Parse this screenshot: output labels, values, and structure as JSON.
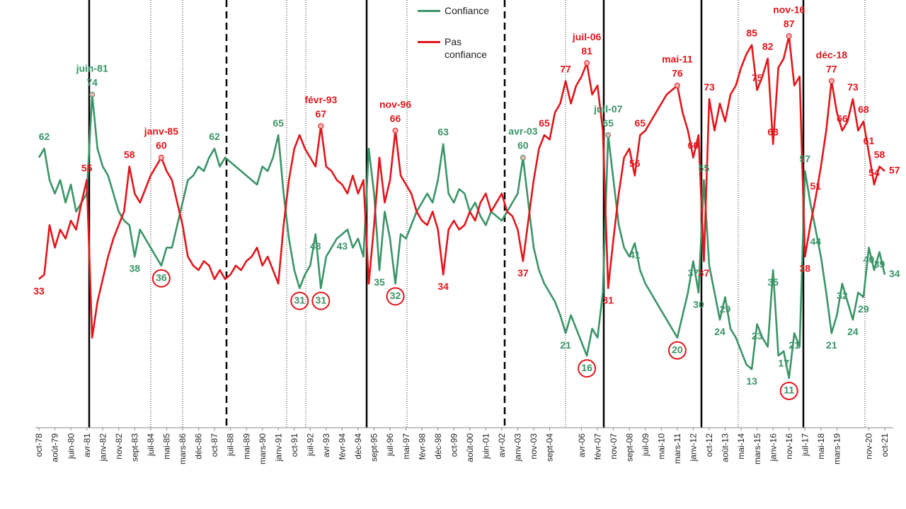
{
  "chart_data": {
    "type": "line",
    "ylim": [
      0,
      95
    ],
    "legend": "top",
    "categories": [
      "oct-78",
      null,
      null,
      "août-79",
      null,
      null,
      "juin-80",
      null,
      null,
      "avr-81",
      null,
      null,
      "janv-82",
      null,
      null,
      "nov-82",
      null,
      null,
      "sept-83",
      null,
      null,
      "juil-84",
      null,
      null,
      "mai-85",
      null,
      null,
      "mars-86",
      null,
      null,
      "déc-86",
      null,
      null,
      "oct-87",
      null,
      null,
      "juil-88",
      null,
      null,
      "mai-89",
      null,
      null,
      "mars-90",
      null,
      null,
      "janv-91",
      null,
      null,
      "oct-91",
      null,
      null,
      "juil-92",
      null,
      null,
      "avr-93",
      null,
      null,
      "févr-94",
      null,
      null,
      "déc-94",
      null,
      null,
      "sept-95",
      null,
      null,
      "juil-96",
      null,
      null,
      "mai-97",
      null,
      null,
      "févr-98",
      null,
      null,
      "déc-98",
      null,
      null,
      "oct-99",
      null,
      null,
      "août-00",
      null,
      null,
      "juin-01",
      null,
      null,
      "avr-02",
      null,
      null,
      "janv-03",
      null,
      null,
      "nov-03",
      null,
      null,
      "sept-04",
      null,
      null,
      null,
      null,
      null,
      "avr-06",
      null,
      null,
      "févr-07",
      null,
      null,
      "nov-07",
      null,
      null,
      "sept-08",
      null,
      null,
      "juil-09",
      null,
      null,
      "mai-10",
      null,
      null,
      "mars-11",
      null,
      null,
      "janv-12",
      null,
      null,
      "oct-12",
      null,
      null,
      "août-13",
      null,
      null,
      "mai-14",
      null,
      null,
      "mars-15",
      null,
      null,
      "janv-16",
      null,
      null,
      "nov-16",
      null,
      null,
      "juil-17",
      null,
      null,
      "mai-18",
      null,
      null,
      "mars-19",
      null,
      null,
      null,
      null,
      null,
      "nov-20",
      null,
      null,
      "oct-21"
    ],
    "series": [
      {
        "name": "Confiance",
        "color": "#3a9467",
        "values": [
          60,
          62,
          55,
          52,
          55,
          50,
          54,
          48,
          50,
          52,
          74,
          62,
          58,
          56,
          52,
          48,
          46,
          45,
          38,
          44,
          42,
          40,
          38,
          36,
          40,
          40,
          45,
          50,
          55,
          56,
          58,
          57,
          60,
          62,
          58,
          60,
          59,
          58,
          57,
          56,
          55,
          54,
          58,
          57,
          60,
          65,
          52,
          42,
          35,
          31,
          34,
          36,
          43,
          31,
          38,
          40,
          42,
          43,
          44,
          40,
          42,
          38,
          62,
          52,
          35,
          48,
          42,
          32,
          43,
          42,
          45,
          48,
          50,
          52,
          50,
          55,
          63,
          52,
          50,
          53,
          52,
          48,
          50,
          47,
          45,
          48,
          47,
          46,
          48,
          50,
          52,
          60,
          50,
          40,
          35,
          32,
          30,
          28,
          25,
          21,
          25,
          22,
          19,
          16,
          22,
          20,
          30,
          65,
          55,
          45,
          40,
          38,
          41,
          35,
          32,
          30,
          28,
          26,
          24,
          22,
          20,
          25,
          30,
          37,
          30,
          55,
          36,
          30,
          24,
          29,
          22,
          20,
          17,
          14,
          13,
          23,
          20,
          18,
          35,
          16,
          17,
          11,
          21,
          18,
          57,
          50,
          44,
          38,
          30,
          21,
          25,
          32,
          28,
          24,
          30,
          29,
          40,
          35,
          39,
          34
        ],
        "value_labels": [
          null,
          "62",
          null,
          null,
          null,
          null,
          null,
          null,
          null,
          null,
          "74",
          null,
          null,
          null,
          null,
          null,
          null,
          null,
          "38",
          null,
          null,
          null,
          null,
          {
            "text": "36",
            "circled": true
          },
          null,
          null,
          null,
          null,
          null,
          null,
          null,
          null,
          null,
          "62",
          null,
          null,
          null,
          null,
          null,
          null,
          null,
          null,
          null,
          null,
          null,
          "65",
          null,
          null,
          null,
          {
            "text": "31",
            "circled": true
          },
          null,
          null,
          "43",
          {
            "text": "31",
            "circled": true
          },
          null,
          null,
          null,
          "43",
          null,
          null,
          null,
          null,
          null,
          null,
          "35",
          null,
          null,
          {
            "text": "32",
            "circled": true
          },
          null,
          null,
          null,
          null,
          null,
          null,
          null,
          null,
          "63",
          null,
          null,
          null,
          null,
          null,
          null,
          null,
          null,
          null,
          null,
          null,
          null,
          null,
          null,
          "60",
          null,
          null,
          null,
          null,
          null,
          null,
          null,
          "21",
          null,
          null,
          null,
          {
            "text": "16",
            "circled": true
          },
          null,
          null,
          null,
          "65",
          null,
          null,
          null,
          null,
          "41",
          null,
          null,
          null,
          null,
          null,
          null,
          null,
          {
            "text": "20",
            "circled": true
          },
          null,
          null,
          "37",
          "30",
          "55",
          null,
          null,
          "24",
          "29",
          null,
          null,
          null,
          null,
          "13",
          "23",
          null,
          null,
          "35",
          null,
          "17",
          {
            "text": "11",
            "circled": true
          },
          "21",
          null,
          "57",
          null,
          "44",
          null,
          null,
          "21",
          null,
          "32",
          null,
          "24",
          null,
          "29",
          "40",
          null,
          "39",
          "34"
        ],
        "date_labels": [
          null,
          null,
          null,
          null,
          null,
          null,
          null,
          null,
          null,
          null,
          "juin-81",
          null,
          null,
          null,
          null,
          null,
          null,
          null,
          null,
          null,
          null,
          null,
          null,
          null,
          null,
          null,
          null,
          null,
          null,
          null,
          null,
          null,
          null,
          null,
          null,
          null,
          null,
          null,
          null,
          null,
          null,
          null,
          null,
          null,
          null,
          null,
          null,
          null,
          null,
          null,
          null,
          null,
          null,
          null,
          null,
          null,
          null,
          null,
          null,
          null,
          null,
          null,
          null,
          null,
          null,
          null,
          null,
          null,
          null,
          null,
          null,
          null,
          null,
          null,
          null,
          null,
          null,
          null,
          null,
          null,
          null,
          null,
          null,
          null,
          null,
          null,
          null,
          null,
          null,
          null,
          null,
          "avr-03",
          null,
          null,
          null,
          null,
          null,
          null,
          null,
          null,
          null,
          null,
          null,
          null,
          null,
          null,
          null,
          "juil-07",
          null,
          null,
          null,
          null,
          null,
          null,
          null,
          null,
          null,
          null,
          null,
          null,
          null,
          null,
          null,
          null,
          null,
          null,
          null,
          null,
          null,
          null,
          null,
          null,
          null,
          null,
          null,
          null,
          null,
          null,
          null,
          null,
          null,
          null,
          null,
          null,
          null,
          null,
          null,
          null,
          null,
          null,
          null,
          null,
          null,
          null,
          null,
          null,
          null,
          null,
          null,
          null
        ]
      },
      {
        "name": "Pas confiance",
        "color": "#e0161b",
        "values": [
          33,
          34,
          45,
          40,
          44,
          42,
          46,
          44,
          50,
          55,
          20,
          28,
          33,
          38,
          42,
          45,
          48,
          58,
          52,
          50,
          53,
          56,
          58,
          60,
          57,
          55,
          50,
          45,
          38,
          36,
          35,
          37,
          36,
          33,
          35,
          33,
          34,
          36,
          35,
          37,
          38,
          40,
          36,
          38,
          35,
          32,
          45,
          55,
          62,
          65,
          62,
          60,
          58,
          67,
          58,
          57,
          55,
          54,
          52,
          56,
          52,
          55,
          32,
          45,
          60,
          50,
          55,
          66,
          56,
          54,
          52,
          48,
          46,
          45,
          48,
          44,
          34,
          44,
          46,
          44,
          45,
          48,
          46,
          50,
          52,
          48,
          50,
          52,
          48,
          47,
          44,
          37,
          46,
          55,
          62,
          65,
          64,
          70,
          72,
          77,
          72,
          76,
          78,
          81,
          74,
          76,
          66,
          31,
          42,
          52,
          60,
          62,
          56,
          65,
          66,
          68,
          70,
          72,
          74,
          75,
          76,
          70,
          66,
          60,
          65,
          37,
          73,
          66,
          72,
          68,
          74,
          76,
          80,
          83,
          85,
          75,
          78,
          82,
          63,
          80,
          82,
          87,
          76,
          78,
          38,
          45,
          51,
          58,
          66,
          77,
          70,
          66,
          68,
          73,
          66,
          68,
          61,
          54,
          58,
          57
        ],
        "value_labels": [
          "33",
          null,
          null,
          null,
          null,
          null,
          null,
          null,
          null,
          "55",
          null,
          null,
          null,
          null,
          null,
          null,
          null,
          "58",
          null,
          null,
          null,
          null,
          null,
          "60",
          null,
          null,
          null,
          null,
          null,
          null,
          null,
          null,
          null,
          null,
          null,
          null,
          null,
          null,
          null,
          null,
          null,
          null,
          null,
          null,
          null,
          null,
          null,
          null,
          null,
          null,
          null,
          null,
          null,
          "67",
          null,
          null,
          null,
          null,
          null,
          null,
          null,
          null,
          null,
          null,
          null,
          null,
          null,
          "66",
          null,
          null,
          null,
          null,
          null,
          null,
          null,
          null,
          "34",
          null,
          null,
          null,
          null,
          null,
          null,
          null,
          null,
          null,
          null,
          null,
          null,
          null,
          null,
          "37",
          null,
          null,
          null,
          "65",
          null,
          null,
          null,
          "77",
          null,
          null,
          null,
          "81",
          null,
          null,
          null,
          "31",
          null,
          null,
          null,
          null,
          "56",
          "65",
          null,
          null,
          null,
          null,
          null,
          null,
          "76",
          null,
          null,
          "60",
          null,
          "37",
          "73",
          null,
          null,
          null,
          null,
          null,
          null,
          null,
          "85",
          "75",
          null,
          "82",
          "63",
          null,
          null,
          "87",
          null,
          null,
          "38",
          null,
          "51",
          null,
          null,
          "77",
          null,
          "66",
          null,
          "73",
          null,
          "68",
          "61",
          "54",
          "58",
          "57"
        ],
        "date_labels": [
          null,
          null,
          null,
          null,
          null,
          null,
          null,
          null,
          null,
          null,
          null,
          null,
          null,
          null,
          null,
          null,
          null,
          null,
          null,
          null,
          null,
          null,
          null,
          "janv-85",
          null,
          null,
          null,
          null,
          null,
          null,
          null,
          null,
          null,
          null,
          null,
          null,
          null,
          null,
          null,
          null,
          null,
          null,
          null,
          null,
          null,
          null,
          null,
          null,
          null,
          null,
          null,
          null,
          null,
          "févr-93",
          null,
          null,
          null,
          null,
          null,
          null,
          null,
          null,
          null,
          null,
          null,
          null,
          null,
          "nov-96",
          null,
          null,
          null,
          null,
          null,
          null,
          null,
          null,
          null,
          null,
          null,
          null,
          null,
          null,
          null,
          null,
          null,
          null,
          null,
          null,
          null,
          null,
          null,
          null,
          null,
          null,
          null,
          null,
          null,
          null,
          null,
          null,
          null,
          null,
          null,
          "juil-06",
          null,
          null,
          null,
          null,
          null,
          null,
          null,
          null,
          null,
          null,
          null,
          null,
          null,
          null,
          null,
          null,
          "mai-11",
          null,
          null,
          null,
          null,
          null,
          null,
          null,
          null,
          null,
          null,
          null,
          null,
          null,
          null,
          null,
          null,
          null,
          null,
          null,
          null,
          "nov-16",
          null,
          null,
          null,
          null,
          null,
          null,
          null,
          "déc-18",
          null,
          null,
          null,
          null,
          null,
          null,
          null,
          null,
          null,
          null
        ]
      }
    ]
  }
}
